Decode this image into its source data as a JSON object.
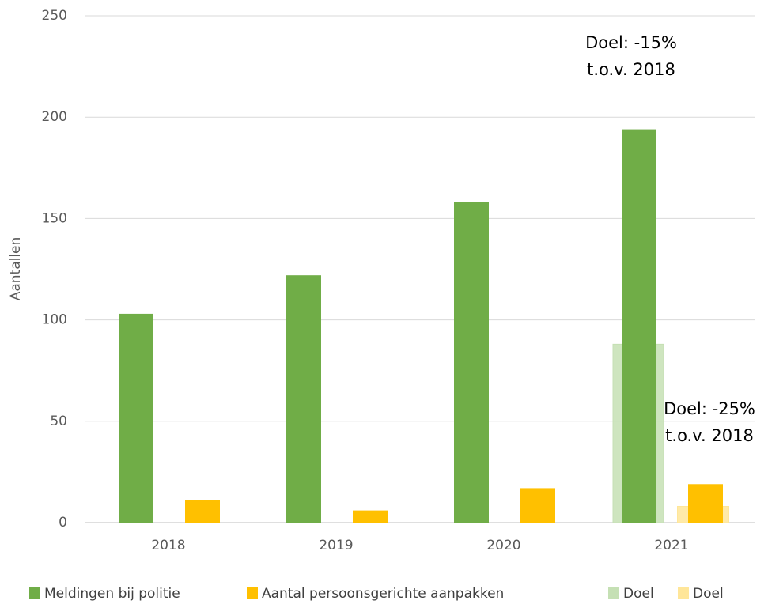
{
  "chart_data": {
    "type": "bar",
    "y_label": "Aantallen",
    "categories": [
      "2018",
      "2019",
      "2020",
      "2021"
    ],
    "series": [
      {
        "name": "Meldingen bij politie",
        "color": "#70ad47",
        "values": [
          103,
          122,
          158,
          194
        ]
      },
      {
        "name": "Aantal persoonsgerichte aanpakken",
        "color": "#ffc000",
        "values": [
          11,
          6,
          17,
          19
        ]
      },
      {
        "name": "Doel",
        "color": "#c5e0b4",
        "values": [
          null,
          null,
          null,
          88
        ]
      },
      {
        "name": "Doel",
        "color": "#ffe699",
        "values": [
          null,
          null,
          null,
          8
        ]
      }
    ],
    "ylim": [
      0,
      250
    ],
    "yticks": [
      0,
      50,
      100,
      150,
      200,
      250
    ],
    "grid": true,
    "legend": "bottom",
    "annotations": [
      {
        "lines": [
          "Doel: -15%",
          "t.o.v. 2018"
        ]
      },
      {
        "lines": [
          "Doel: -25%",
          "t.o.v. 2018"
        ]
      }
    ]
  }
}
